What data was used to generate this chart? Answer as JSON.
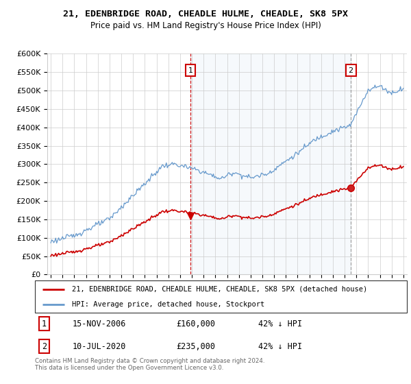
{
  "title": "21, EDENBRIDGE ROAD, CHEADLE HULME, CHEADLE, SK8 5PX",
  "subtitle": "Price paid vs. HM Land Registry's House Price Index (HPI)",
  "legend_line1": "21, EDENBRIDGE ROAD, CHEADLE HULME, CHEADLE, SK8 5PX (detached house)",
  "legend_line2": "HPI: Average price, detached house, Stockport",
  "annotation1_label": "1",
  "annotation1_date": "15-NOV-2006",
  "annotation1_price": "£160,000",
  "annotation1_hpi": "42% ↓ HPI",
  "annotation2_label": "2",
  "annotation2_date": "10-JUL-2020",
  "annotation2_price": "£235,000",
  "annotation2_hpi": "42% ↓ HPI",
  "footnote": "Contains HM Land Registry data © Crown copyright and database right 2024.\nThis data is licensed under the Open Government Licence v3.0.",
  "red_color": "#cc0000",
  "blue_color": "#6699cc",
  "blue_fill": "#dce9f5",
  "annotation_color": "#cc0000",
  "vline2_color": "#999999",
  "ylim": [
    0,
    600000
  ],
  "yticks": [
    0,
    50000,
    100000,
    150000,
    200000,
    250000,
    300000,
    350000,
    400000,
    450000,
    500000,
    550000,
    600000
  ],
  "sale1_x": 2006.88,
  "sale1_y": 160000,
  "sale2_x": 2020.53,
  "sale2_y": 235000,
  "xlim_start": 1994.7,
  "xlim_end": 2025.3
}
